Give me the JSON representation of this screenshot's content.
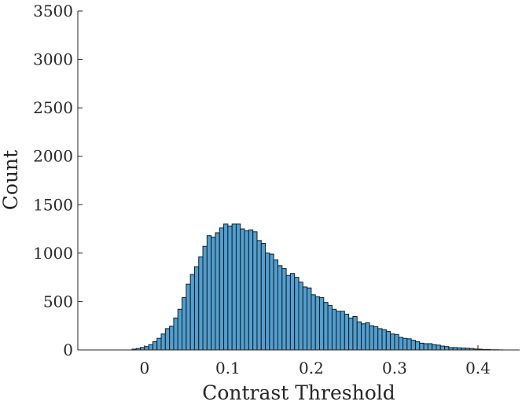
{
  "chart_data": {
    "type": "bar",
    "title": "",
    "xlabel": "Contrast Threshold",
    "ylabel": "Count",
    "xlim": [
      -0.08,
      0.45
    ],
    "ylim": [
      0,
      3500
    ],
    "xticks": [
      0,
      0.1,
      0.2,
      0.3,
      0.4
    ],
    "xtick_labels": [
      "0",
      "0.1",
      "0.2",
      "0.3",
      "0.4"
    ],
    "yticks": [
      0,
      500,
      1000,
      1500,
      2000,
      2500,
      3000,
      3500
    ],
    "ytick_labels": [
      "0",
      "500",
      "1000",
      "1500",
      "2000",
      "2500",
      "3000",
      "3500"
    ],
    "grid": false,
    "bin_start": -0.015,
    "bin_width": 0.005,
    "counts": [
      8,
      15,
      25,
      35,
      55,
      85,
      120,
      165,
      220,
      245,
      330,
      420,
      540,
      680,
      780,
      860,
      960,
      1070,
      1180,
      1165,
      1210,
      1260,
      1300,
      1280,
      1300,
      1300,
      1250,
      1230,
      1240,
      1220,
      1130,
      1100,
      1000,
      990,
      930,
      870,
      840,
      770,
      790,
      750,
      700,
      650,
      640,
      570,
      550,
      540,
      490,
      460,
      420,
      400,
      400,
      370,
      330,
      345,
      290,
      270,
      280,
      250,
      240,
      220,
      210,
      190,
      165,
      160,
      130,
      120,
      115,
      100,
      85,
      70,
      65,
      65,
      55,
      50,
      40,
      35,
      25,
      25,
      22,
      20,
      18,
      15,
      10,
      8,
      5,
      5,
      2,
      2,
      1
    ],
    "bar_color": "#4f9fd2",
    "edge_color": "#1a1a1a"
  }
}
